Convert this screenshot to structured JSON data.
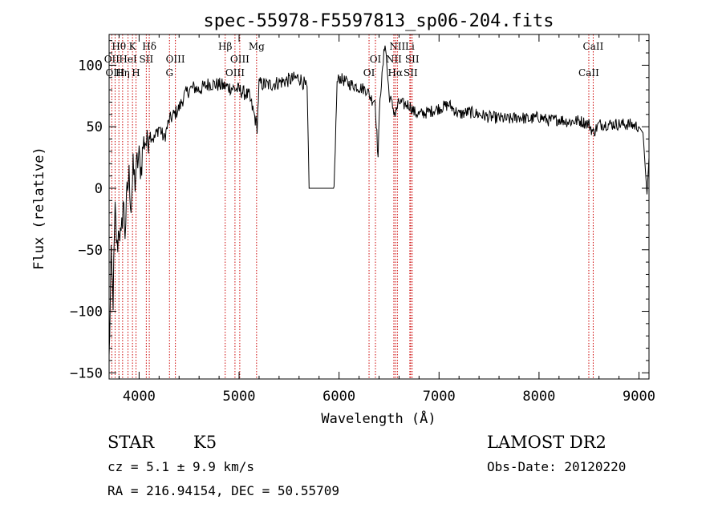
{
  "chart_data": {
    "type": "line",
    "title": "spec-55978-F5597813_sp06-204.fits",
    "xlabel": "Wavelength (Å)",
    "ylabel": "Flux (relative)",
    "xlim": [
      3700,
      9100
    ],
    "ylim": [
      -155,
      125
    ],
    "xticks": [
      4000,
      5000,
      6000,
      7000,
      8000,
      9000
    ],
    "yticks": [
      -150,
      -100,
      -50,
      0,
      50,
      100
    ],
    "grid": false,
    "series": [
      {
        "x": [
          3700,
          3720,
          3740,
          3760,
          3780,
          3800,
          3820,
          3840,
          3860,
          3880,
          3900,
          3920,
          3940,
          3960,
          3980,
          4000,
          4020,
          4040,
          4060,
          4080,
          4100,
          4150,
          4200,
          4250,
          4300,
          4350,
          4400,
          4450,
          4500,
          4550,
          4600,
          4700,
          4800,
          4900,
          5000,
          5100,
          5150,
          5180,
          5200,
          5300,
          5400,
          5500,
          5600,
          5650,
          5680,
          5700,
          5950,
          5980,
          6000,
          6100,
          6200,
          6280,
          6300,
          6330,
          6360,
          6390,
          6410,
          6430,
          6460,
          6500,
          6560,
          6600,
          6650,
          6700,
          6750,
          6800,
          6900,
          7000,
          7100,
          7200,
          7300,
          7400,
          7500,
          7600,
          7700,
          7800,
          7900,
          8000,
          8100,
          8200,
          8300,
          8400,
          8500,
          8542,
          8600,
          8700,
          8800,
          8900,
          9000,
          9040,
          9060,
          9080,
          9100
        ],
        "y": [
          -140,
          -60,
          -90,
          -20,
          -50,
          -30,
          -45,
          -10,
          -35,
          -5,
          10,
          -15,
          15,
          5,
          20,
          25,
          15,
          35,
          40,
          35,
          45,
          40,
          50,
          40,
          55,
          60,
          65,
          75,
          80,
          82,
          80,
          85,
          84,
          82,
          80,
          75,
          60,
          50,
          85,
          84,
          86,
          88,
          90,
          85,
          80,
          0,
          0,
          85,
          90,
          85,
          82,
          80,
          76,
          72,
          72,
          25,
          76,
          90,
          120,
          76,
          60,
          70,
          68,
          68,
          62,
          60,
          62,
          65,
          68,
          60,
          62,
          60,
          58,
          57,
          56,
          58,
          56,
          58,
          55,
          56,
          54,
          55,
          52,
          45,
          52,
          52,
          52,
          52,
          50,
          45,
          20,
          -5,
          25
        ]
      }
    ],
    "line_markers": [
      {
        "label": "Hθ",
        "x": 3798,
        "row": 1
      },
      {
        "label": "OII",
        "x": 3727,
        "row": 2
      },
      {
        "label": "OIII",
        "x": 3760,
        "row": 3
      },
      {
        "label": "K",
        "x": 3934,
        "row": 1
      },
      {
        "label": "HeI",
        "x": 3889,
        "row": 2
      },
      {
        "label": "Hη",
        "x": 3835,
        "row": 3
      },
      {
        "label": "Hδ",
        "x": 4102,
        "row": 1
      },
      {
        "label": "SII",
        "x": 4072,
        "row": 2
      },
      {
        "label": "H",
        "x": 3969,
        "row": 3
      },
      {
        "label": "OIII",
        "x": 4363,
        "row": 2
      },
      {
        "label": "G",
        "x": 4304,
        "row": 3
      },
      {
        "label": "Hβ",
        "x": 4861,
        "row": 1
      },
      {
        "label": "OIII",
        "x": 5007,
        "row": 2
      },
      {
        "label": "OIII",
        "x": 4959,
        "row": 3
      },
      {
        "label": "Mg",
        "x": 5175,
        "row": 1
      },
      {
        "label": "OI",
        "x": 6364,
        "row": 2
      },
      {
        "label": "OI",
        "x": 6300,
        "row": 3
      },
      {
        "label": "NII",
        "x": 6583,
        "row": 1
      },
      {
        "label": "NII",
        "x": 6548,
        "row": 2
      },
      {
        "label": "Hα",
        "x": 6563,
        "row": 3
      },
      {
        "label": "Li",
        "x": 6708,
        "row": 1
      },
      {
        "label": "SII",
        "x": 6731,
        "row": 2
      },
      {
        "label": "SII",
        "x": 6716,
        "row": 3
      },
      {
        "label": "CaII",
        "x": 8542,
        "row": 1
      },
      {
        "label": "CaII",
        "x": 8498,
        "row": 3
      }
    ],
    "marker_color": "#cc0000"
  },
  "info": {
    "object_class": "STAR",
    "subclass": "K5",
    "survey": "LAMOST DR2",
    "redshift_line": "cz = 5.1 ± 9.9 km/s",
    "obs_date": "Obs-Date: 20120220",
    "coords": "RA = 216.94154, DEC =  50.55709"
  }
}
